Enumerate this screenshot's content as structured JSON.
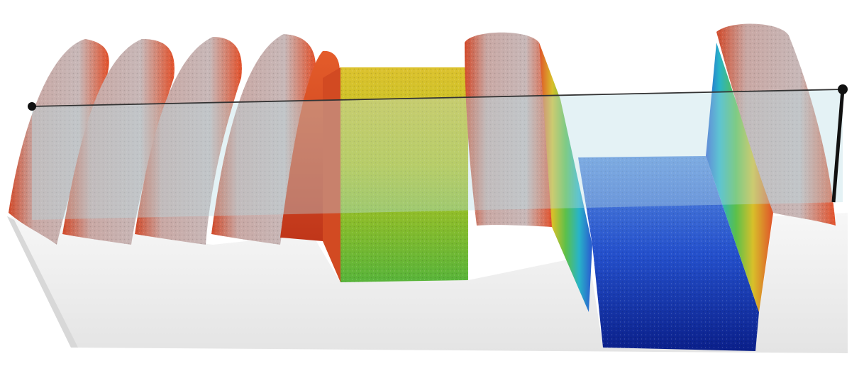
{
  "scene": {
    "subject": "3d-surface-height-map",
    "colors": {
      "background": "#ffffff",
      "base_light": "#f4f4f4",
      "base_shade": "#d9d9d9",
      "ridge_top": "#c9b3b3",
      "ridge_edge": "#e2502a",
      "ridge_deep": "#c23a1c",
      "yellow_top": "#d9c23a",
      "yellow_face": "#a8c81c",
      "green_low": "#3cb04a",
      "blue_top": "#4f7fd8",
      "blue_face": "#1b3fc2",
      "blue_deep": "#0a1f8a",
      "cut_plane": "#b9dce6",
      "cut_line": "#333333",
      "cut_handle": "#111111"
    }
  }
}
